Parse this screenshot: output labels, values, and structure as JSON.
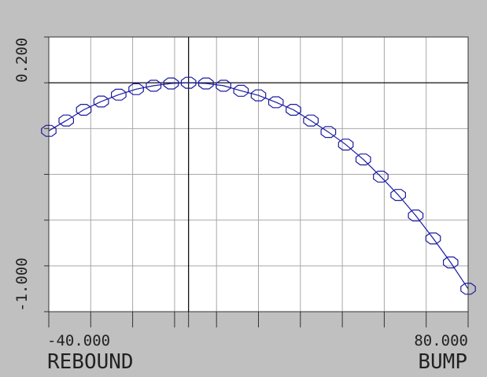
{
  "chart_data": {
    "type": "line",
    "title": "",
    "xlabel_left": "REBOUND",
    "xlabel_right": "BUMP",
    "x_tick_labels": [
      "-40.000",
      "80.000"
    ],
    "y_tick_labels": [
      "0.200",
      "-1.000"
    ],
    "xlim": [
      -40,
      80
    ],
    "ylim": [
      -1.0,
      0.2
    ],
    "x_gridlines": [
      -40,
      -28,
      -16,
      -4,
      8,
      20,
      32,
      44,
      56,
      68,
      80
    ],
    "y_gridlines": [
      -1.0,
      -0.8,
      -0.6,
      -0.4,
      -0.2,
      0.0,
      0.2
    ],
    "grid": true,
    "origin_x": 0,
    "origin_y": 0,
    "series": [
      {
        "color": "#1a1aa0",
        "marker": "octagon",
        "x": [
          -40,
          -35,
          -30,
          -25,
          -20,
          -15,
          -10,
          -5,
          0,
          5,
          10,
          15,
          20,
          25,
          30,
          35,
          40,
          45,
          50,
          55,
          60,
          65,
          70,
          75,
          80
        ],
        "y": [
          -0.21,
          -0.165,
          -0.118,
          -0.082,
          -0.052,
          -0.028,
          -0.013,
          -0.003,
          0.0,
          -0.003,
          -0.013,
          -0.035,
          -0.055,
          -0.085,
          -0.118,
          -0.165,
          -0.215,
          -0.27,
          -0.335,
          -0.41,
          -0.49,
          -0.58,
          -0.68,
          -0.785,
          -0.9
        ]
      }
    ]
  }
}
